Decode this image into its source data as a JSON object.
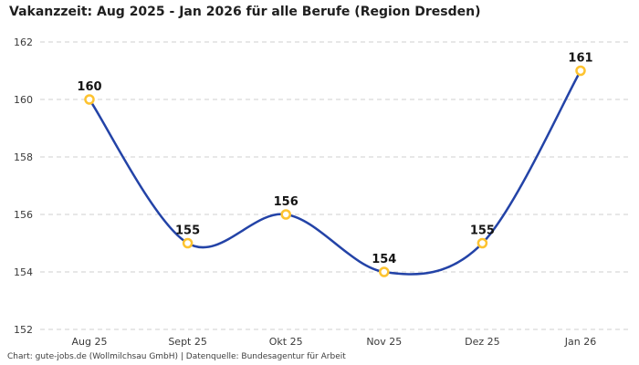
{
  "title": "Vakanzzeit: Aug 2025 - Jan 2026 für alle Berufe (Region Dresden)",
  "footer": "Chart: gute-jobs.de (Wollmilchsau GmbH) | Datenquelle: Bundesagentur für Arbeit",
  "chart_data": {
    "type": "line",
    "title": "Vakanzzeit: Aug 2025 - Jan 2026 für alle Berufe (Region Dresden)",
    "categories": [
      "Aug 25",
      "Sept 25",
      "Okt 25",
      "Nov 25",
      "Dez 25",
      "Jan 26"
    ],
    "values": [
      160,
      155,
      156,
      154,
      155,
      161
    ],
    "data_labels": [
      "160",
      "155",
      "156",
      "154",
      "155",
      "161"
    ],
    "xlabel": "",
    "ylabel": "",
    "ylim": [
      152,
      162
    ],
    "yticks": [
      152,
      154,
      156,
      158,
      160,
      162
    ],
    "grid": "horizontal-dashed",
    "legend": "none",
    "line_style": "smooth-spline",
    "colors": {
      "line": "#2343a7",
      "marker_stroke": "#fdc330",
      "marker_fill": "#ffffff",
      "gridline": "#cfcfcf",
      "tick_text": "#3a3a3a",
      "data_label": "#141414",
      "title_text": "#1f1f1f",
      "background": "#ffffff"
    }
  }
}
